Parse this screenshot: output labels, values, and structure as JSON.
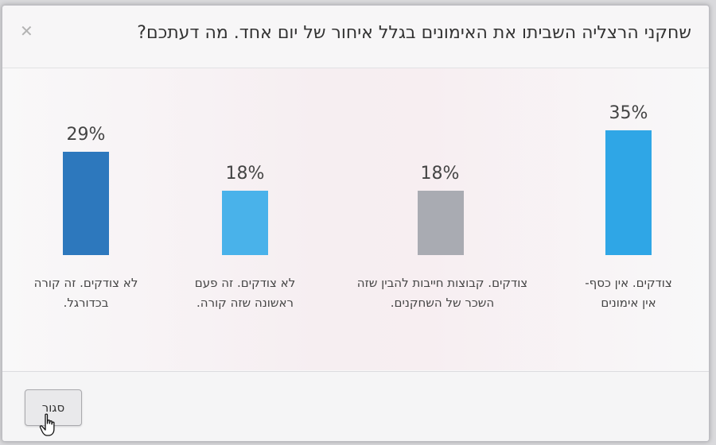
{
  "dialog": {
    "title": "שחקני הרצליה השביתו את האימונים בגלל איחור של יום אחד. מה דעתכם?",
    "close_icon": "close-icon",
    "close_button_label": "סגור"
  },
  "chart_data": {
    "type": "bar",
    "categories": [
      "צודקים. אין כסף- אין אימונים",
      "צודקים. קבוצות חייבות להבין שזה השכר של השחקנים.",
      "לא צודקים. זה פעם ראשונה שזה קורה.",
      "לא צודקים. זה קורה בכדורגל."
    ],
    "category_lines": [
      [
        "צודקים. אין כסף-",
        "אין אימונים"
      ],
      [
        "צודקים. קבוצות חייבות להבין שזה",
        "השכר של השחקנים."
      ],
      [
        "לא צודקים. זה פעם",
        "ראשונה שזה קורה."
      ],
      [
        "לא צודקים. זה קורה",
        "בכדורגל."
      ]
    ],
    "values": [
      35,
      18,
      18,
      29
    ],
    "value_labels": [
      "35%",
      "18%",
      "18%",
      "29%"
    ],
    "colors": [
      "#2fa6e6",
      "#a9abb2",
      "#49b2ea",
      "#2d78bd"
    ],
    "ylim": [
      0,
      35
    ]
  }
}
